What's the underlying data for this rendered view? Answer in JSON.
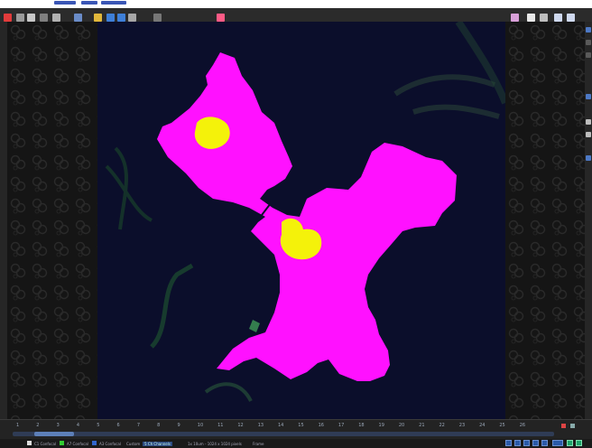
{
  "colors": {
    "cell_mask": "#ff11ff",
    "nucleus_mask": "#f4f20a",
    "image_background": "#0b0e2b",
    "accent": "#3a5fb8"
  },
  "toolbar": {
    "icons": [
      "logo-icon",
      "open-icon",
      "snapshot-icon",
      "arrow-icon",
      "measure-icon",
      "zoom-icon",
      "grid-icon",
      "layers-icon",
      "view-icon",
      "render-icon",
      "settings-icon",
      "color-icon"
    ],
    "right_icons": [
      "pointer-icon",
      "fit-icon",
      "actual-size-icon",
      "zoom-in-icon",
      "zoom-out-icon"
    ]
  },
  "timeline": {
    "ticks": [
      "1",
      "2",
      "3",
      "4",
      "5",
      "6",
      "7",
      "8",
      "9",
      "10",
      "11",
      "12",
      "13",
      "14",
      "15",
      "16",
      "17",
      "18",
      "19",
      "20",
      "21",
      "22",
      "23",
      "24",
      "25",
      "26"
    ],
    "position_fraction": 0.04
  },
  "status": {
    "channels": [
      "C1 Confocal",
      "A7 Confocal",
      "A3 Confocal"
    ],
    "mode": "Custom",
    "selection": "5 Ch Channels",
    "zoom_info": "1x 10um - 1024 x 1024 pixels",
    "frame": "Frame"
  }
}
